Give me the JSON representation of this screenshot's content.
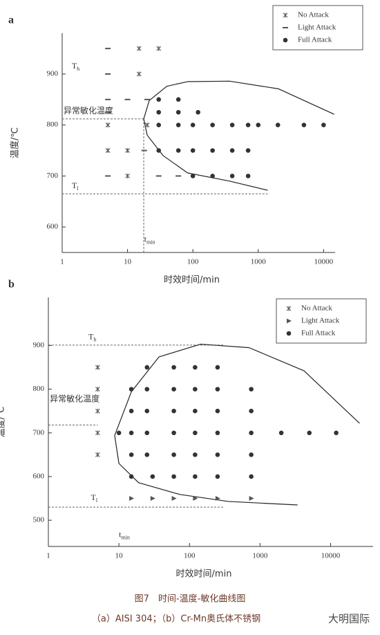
{
  "chart_data": [
    {
      "type": "scatter",
      "panel_label": "a",
      "x_label": "时效时间/min",
      "y_label": "温度/℃",
      "x_scale": "log",
      "xlim": [
        1,
        15000
      ],
      "xticks": [
        1,
        10,
        100,
        1000,
        10000
      ],
      "ylim": [
        550,
        980
      ],
      "yticks": [
        600,
        700,
        800,
        900
      ],
      "legend": "upper right",
      "series": [
        {
          "name": "No Attack",
          "marker": "star",
          "color": "#555555",
          "x": [
            15,
            30,
            15,
            5,
            20,
            5,
            10,
            10
          ],
          "y": [
            950,
            950,
            900,
            800,
            800,
            750,
            750,
            700
          ]
        },
        {
          "name": "Light Attack",
          "marker": "dash",
          "color": "#555555",
          "x": [
            5,
            5,
            5,
            10,
            20,
            5,
            18,
            30,
            60,
            5
          ],
          "y": [
            950,
            900,
            850,
            850,
            850,
            825,
            750,
            700,
            700,
            700
          ]
        },
        {
          "name": "Full Attack",
          "marker": "circle",
          "color": "#333333",
          "x": [
            30,
            60,
            30,
            60,
            120,
            30,
            60,
            100,
            200,
            400,
            700,
            1000,
            2000,
            5000,
            10000,
            30,
            60,
            100,
            200,
            400,
            700,
            100,
            200,
            400,
            700
          ],
          "y": [
            850,
            850,
            825,
            825,
            825,
            800,
            800,
            800,
            800,
            800,
            800,
            800,
            800,
            800,
            800,
            750,
            750,
            750,
            750,
            750,
            750,
            700,
            700,
            700,
            700
          ]
        }
      ],
      "curve": {
        "x": [
          14500,
          2030,
          363,
          83,
          40,
          21.5,
          17.7,
          20,
          35,
          83,
          363,
          1400
        ],
        "y": [
          821,
          871,
          886,
          885,
          876,
          848,
          812,
          780,
          740,
          706,
          690,
          672
        ]
      },
      "dashed_lines": [
        {
          "x": [
            1,
            17.7
          ],
          "y": [
            812,
            812
          ]
        },
        {
          "x": [
            1,
            1400
          ],
          "y": [
            665,
            665
          ]
        },
        {
          "x": [
            17.7,
            17.7
          ],
          "y": [
            812,
            550
          ]
        }
      ],
      "annotations": [
        {
          "text": "T",
          "sub": "h",
          "x": 1.4,
          "y": 915
        },
        {
          "text": "异常敏化温度",
          "x": 1.05,
          "y": 828
        },
        {
          "text": "T",
          "sub": "l",
          "x": 1.4,
          "y": 680
        },
        {
          "text": "t",
          "sub": "min",
          "x": 18,
          "y": 575
        }
      ]
    },
    {
      "type": "scatter",
      "panel_label": "b",
      "x_label": "时效时间/min",
      "y_label": "温度/℃",
      "x_scale": "log",
      "xlim": [
        1,
        40000
      ],
      "xticks": [
        1,
        10,
        100,
        1000,
        10000
      ],
      "ylim": [
        440,
        1010
      ],
      "yticks": [
        500,
        600,
        700,
        800,
        900
      ],
      "legend": "upper right",
      "series": [
        {
          "name": "No Attack",
          "marker": "star",
          "color": "#555555",
          "x": [
            5,
            5,
            5,
            5,
            5
          ],
          "y": [
            850,
            800,
            750,
            700,
            650
          ]
        },
        {
          "name": "Light Attack",
          "marker": "triangle",
          "color": "#555555",
          "x": [
            15,
            30,
            60,
            120,
            250,
            750
          ],
          "y": [
            550,
            550,
            550,
            550,
            550,
            550
          ]
        },
        {
          "name": "Full Attack",
          "marker": "circle",
          "color": "#333333",
          "x": [
            25,
            60,
            120,
            250,
            15,
            25,
            60,
            120,
            250,
            750,
            15,
            25,
            60,
            120,
            250,
            750,
            10,
            15,
            25,
            60,
            120,
            250,
            750,
            2000,
            5000,
            12000,
            15,
            25,
            60,
            120,
            250,
            750,
            15,
            30,
            60,
            120,
            250,
            750
          ],
          "y": [
            850,
            850,
            850,
            850,
            800,
            800,
            800,
            800,
            800,
            800,
            750,
            750,
            750,
            750,
            750,
            750,
            700,
            700,
            700,
            700,
            700,
            700,
            700,
            700,
            700,
            700,
            650,
            650,
            650,
            650,
            650,
            650,
            600,
            600,
            600,
            600,
            600,
            600
          ]
        }
      ],
      "curve": {
        "x": [
          25700,
          4200,
          700,
          144,
          37,
          15,
          8.7,
          10,
          19,
          73,
          355,
          3400
        ],
        "y": [
          722,
          842,
          895,
          903,
          874,
          794,
          694,
          630,
          586,
          559,
          543,
          535
        ]
      },
      "dashed_lines": [
        {
          "x": [
            1,
            300
          ],
          "y": [
            901,
            901
          ]
        },
        {
          "x": [
            1,
            5
          ],
          "y": [
            718,
            718
          ]
        },
        {
          "x": [
            1,
            300
          ],
          "y": [
            530,
            530
          ]
        }
      ],
      "annotations": [
        {
          "text": "T",
          "sub": "h",
          "x": 3.7,
          "y": 919
        },
        {
          "text": "异常敏化温度",
          "x": 1.05,
          "y": 778
        },
        {
          "text": "T",
          "sub": "l",
          "x": 4,
          "y": 551
        },
        {
          "text": "t",
          "sub": "min",
          "x": 10,
          "y": 466
        }
      ]
    }
  ],
  "caption": {
    "title": "图7　时间-温度-敏化曲线图",
    "subtitle": "（a）AISI 304；（b）Cr-Mn奥氏体不锈钢"
  },
  "watermark": "大明国际"
}
